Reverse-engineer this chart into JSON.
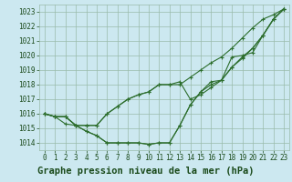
{
  "title": "Graphe pression niveau de la mer (hPa)",
  "bg_color": "#cce8f0",
  "grid_color": "#99bbaa",
  "line_color": "#2d6e2d",
  "ylim": [
    1013.5,
    1023.5
  ],
  "xlim": [
    -0.5,
    23.5
  ],
  "yticks": [
    1014,
    1015,
    1016,
    1017,
    1018,
    1019,
    1020,
    1021,
    1022,
    1023
  ],
  "xticks": [
    0,
    1,
    2,
    3,
    4,
    5,
    6,
    7,
    8,
    9,
    10,
    11,
    12,
    13,
    14,
    15,
    16,
    17,
    18,
    19,
    20,
    21,
    22,
    23
  ],
  "series": [
    [
      1016.0,
      1015.8,
      1015.8,
      1015.2,
      1014.8,
      1014.5,
      1014.0,
      1014.0,
      1014.0,
      1014.0,
      1013.9,
      1014.0,
      1014.0,
      1015.2,
      1016.6,
      1017.5,
      1018.2,
      1018.3,
      1019.2,
      1019.9,
      1020.5,
      1021.4,
      1022.5,
      1023.2
    ],
    [
      1016.0,
      1015.8,
      1015.8,
      1015.2,
      1015.2,
      1015.2,
      1016.0,
      1016.5,
      1017.0,
      1017.3,
      1017.5,
      1018.0,
      1018.0,
      1018.0,
      1018.5,
      1019.0,
      1019.5,
      1019.9,
      1020.5,
      1021.2,
      1021.9,
      1022.5,
      1022.8,
      1023.2
    ],
    [
      1016.0,
      1015.8,
      1015.8,
      1015.2,
      1015.2,
      1015.2,
      1016.0,
      1016.5,
      1017.0,
      1017.3,
      1017.5,
      1018.0,
      1018.0,
      1018.2,
      1017.0,
      1017.3,
      1017.8,
      1018.3,
      1019.9,
      1020.0,
      1020.2,
      1021.4,
      1022.5,
      1023.2
    ],
    [
      1016.0,
      1015.8,
      1015.3,
      1015.2,
      1014.8,
      1014.5,
      1014.0,
      1014.0,
      1014.0,
      1014.0,
      1013.9,
      1014.0,
      1014.0,
      1015.2,
      1016.6,
      1017.5,
      1018.0,
      1018.3,
      1019.2,
      1019.8,
      1020.5,
      1021.4,
      1022.5,
      1023.2
    ]
  ],
  "title_fontsize": 7.5,
  "tick_fontsize": 5.5,
  "title_color": "#1a4a1a",
  "tick_color": "#1a4a1a",
  "title_bg": "#88bb88"
}
